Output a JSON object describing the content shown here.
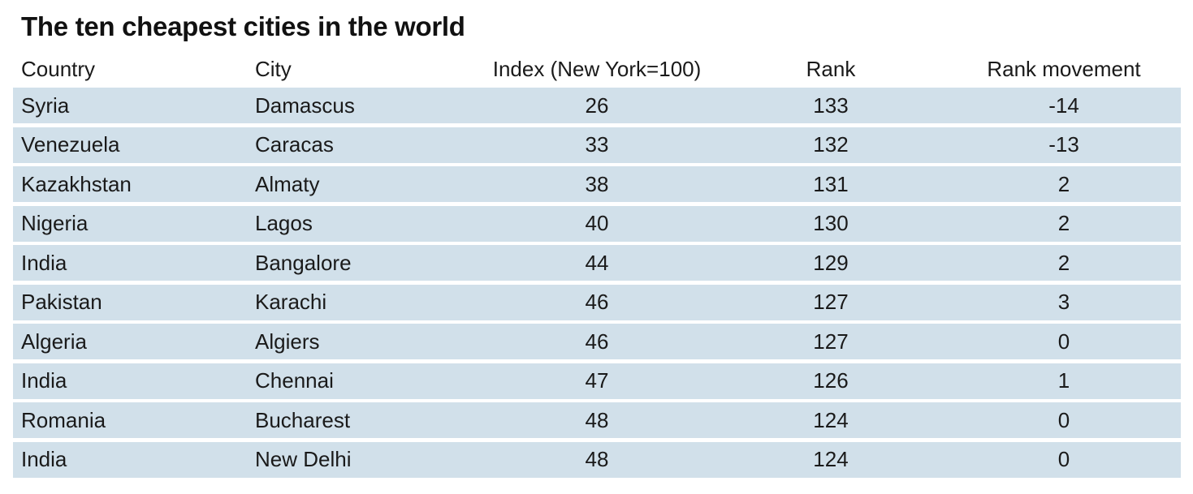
{
  "chart_data": {
    "type": "table",
    "title": "The ten cheapest cities in the world",
    "columns": [
      "Country",
      "City",
      "Index (New York=100)",
      "Rank",
      "Rank movement"
    ],
    "rows": [
      [
        "Syria",
        "Damascus",
        "26",
        "133",
        "-14"
      ],
      [
        "Venezuela",
        "Caracas",
        "33",
        "132",
        "-13"
      ],
      [
        "Kazakhstan",
        "Almaty",
        "38",
        "131",
        "2"
      ],
      [
        "Nigeria",
        "Lagos",
        "40",
        "130",
        "2"
      ],
      [
        "India",
        "Bangalore",
        "44",
        "129",
        "2"
      ],
      [
        "Pakistan",
        "Karachi",
        "46",
        "127",
        "3"
      ],
      [
        "Algeria",
        "Algiers",
        "46",
        "127",
        "0"
      ],
      [
        "India",
        "Chennai",
        "47",
        "126",
        "1"
      ],
      [
        "Romania",
        "Bucharest",
        "48",
        "124",
        "0"
      ],
      [
        "India",
        "New Delhi",
        "48",
        "124",
        "0"
      ]
    ]
  },
  "colors": {
    "row_background": "#d1e0ea",
    "text": "#1a1a1a"
  }
}
